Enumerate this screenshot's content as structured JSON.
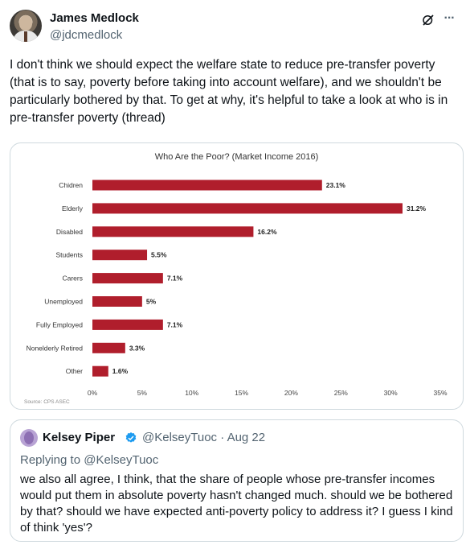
{
  "author": {
    "name": "James Medlock",
    "handle": "@jdcmedlock"
  },
  "tweet_text": "I don't think we should expect the welfare state to reduce pre-transfer poverty (that is to say, poverty before taking into account welfare), and we shouldn't be particularly bothered by that. To get at why, it's helpful to take a look at who is in pre-transfer poverty (thread)",
  "icons": {
    "grok": "grok-icon",
    "more": "more-icon",
    "verified": "verified-icon"
  },
  "chart_data": {
    "type": "bar",
    "orientation": "horizontal",
    "title": "Who Are the Poor? (Market Income 2016)",
    "categories": [
      "Chidren",
      "Elderly",
      "Disabled",
      "Students",
      "Carers",
      "Unemployed",
      "Fully Employed",
      "Nonelderly Retired",
      "Other"
    ],
    "values": [
      23.1,
      31.2,
      16.2,
      5.5,
      7.1,
      5,
      7.1,
      3.3,
      1.6
    ],
    "value_labels": [
      "23.1%",
      "31.2%",
      "16.2%",
      "5.5%",
      "7.1%",
      "5%",
      "7.1%",
      "3.3%",
      "1.6%"
    ],
    "xticks": [
      "0%",
      "5%",
      "10%",
      "15%",
      "20%",
      "25%",
      "30%",
      "35%"
    ],
    "xlim": [
      0,
      35
    ],
    "source": "Source: CPS ASEC",
    "bar_color": "#b01e2c",
    "grid": false
  },
  "quote": {
    "name": "Kelsey Piper",
    "handle": "@KelseyTuoc",
    "separator": "·",
    "date": "Aug 22",
    "replying_to": "Replying to @KelseyTuoc",
    "text": "we also all agree, I think, that the share of people whose pre-transfer incomes would put them in absolute poverty hasn't changed much. should we be bothered by that? should we have expected anti-poverty policy to address it? I guess I kind of think 'yes'?"
  },
  "colors": {
    "text": "#0f1419",
    "secondary": "#536471",
    "border": "#cfd9de",
    "verified": "#1d9bf0"
  }
}
